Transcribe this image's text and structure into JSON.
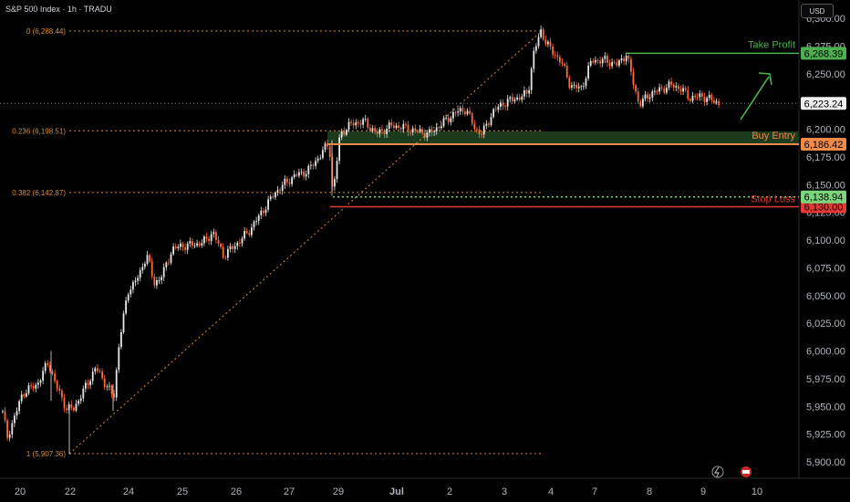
{
  "header": {
    "title": "S&P 500 Index · 1h · TRADU",
    "currency": "USD"
  },
  "colors": {
    "background": "#000000",
    "up": "#e6e6e6",
    "down": "#ff6b3d",
    "take_profit": "#4caf50",
    "buy_entry": "#f08a4b",
    "stop_loss": "#e53935",
    "fib": "#d98c3a",
    "zone": "#1d3d1d"
  },
  "chart_data": {
    "type": "candlestick",
    "title": "S&P 500 Index · 1h · TRADU",
    "ylim": [
      5887,
      6308
    ],
    "y_ticks": [
      "6,300.00",
      "6,275.00",
      "6,250.00",
      "6,225.00",
      "6,200.00",
      "6,175.00",
      "6,150.00",
      "6,125.00",
      "6,100.00",
      "6,075.00",
      "6,050.00",
      "6,025.00",
      "6,000.00",
      "5,975.00",
      "5,950.00",
      "5,925.00",
      "5,900.00"
    ],
    "x_ticks": [
      "20",
      "22",
      "24",
      "25",
      "26",
      "27",
      "29",
      "Jul",
      "2",
      "3",
      "4",
      "7",
      "8",
      "9",
      "10"
    ],
    "series": [
      {
        "x": "20",
        "close": 5922
      },
      {
        "x": "22",
        "close": 5962
      },
      {
        "x": "24",
        "close": 6068
      },
      {
        "x": "25",
        "close": 6092
      },
      {
        "x": "26",
        "close": 6098
      },
      {
        "x": "27",
        "close": 6160
      },
      {
        "x": "29",
        "close": 6196
      },
      {
        "x": "Jul",
        "close": 6203
      },
      {
        "x": "2",
        "close": 6210
      },
      {
        "x": "3",
        "close": 6240
      },
      {
        "x": "4",
        "close": 6275
      },
      {
        "x": "7",
        "close": 6255
      },
      {
        "x": "8",
        "close": 6232
      },
      {
        "x": "9",
        "close": 6225
      }
    ],
    "levels": [
      {
        "name": "Take Profit",
        "price": "6,268.39",
        "value": 6268.39,
        "color": "#4caf50"
      },
      {
        "name": "Buy Entry",
        "price": "6,186.42",
        "value": 6186.42,
        "color": "#f08a4b"
      },
      {
        "name": "Stop Loss",
        "price": "6,130.00",
        "value": 6130.0,
        "color": "#e53935"
      }
    ],
    "current_price": {
      "label": "6,223.24",
      "value": 6223.24
    },
    "zone_price": {
      "label": "6,138.94",
      "value": 6138.94
    },
    "fib_levels": [
      {
        "label": "0 (6,288.44)",
        "value": 6288.44
      },
      {
        "label": "0.236 (6,198.51)",
        "value": 6198.51
      },
      {
        "label": "0.382 (6,142.87)",
        "value": 6142.87
      },
      {
        "label": "1 (5,907.36)",
        "value": 5907.36
      }
    ]
  }
}
